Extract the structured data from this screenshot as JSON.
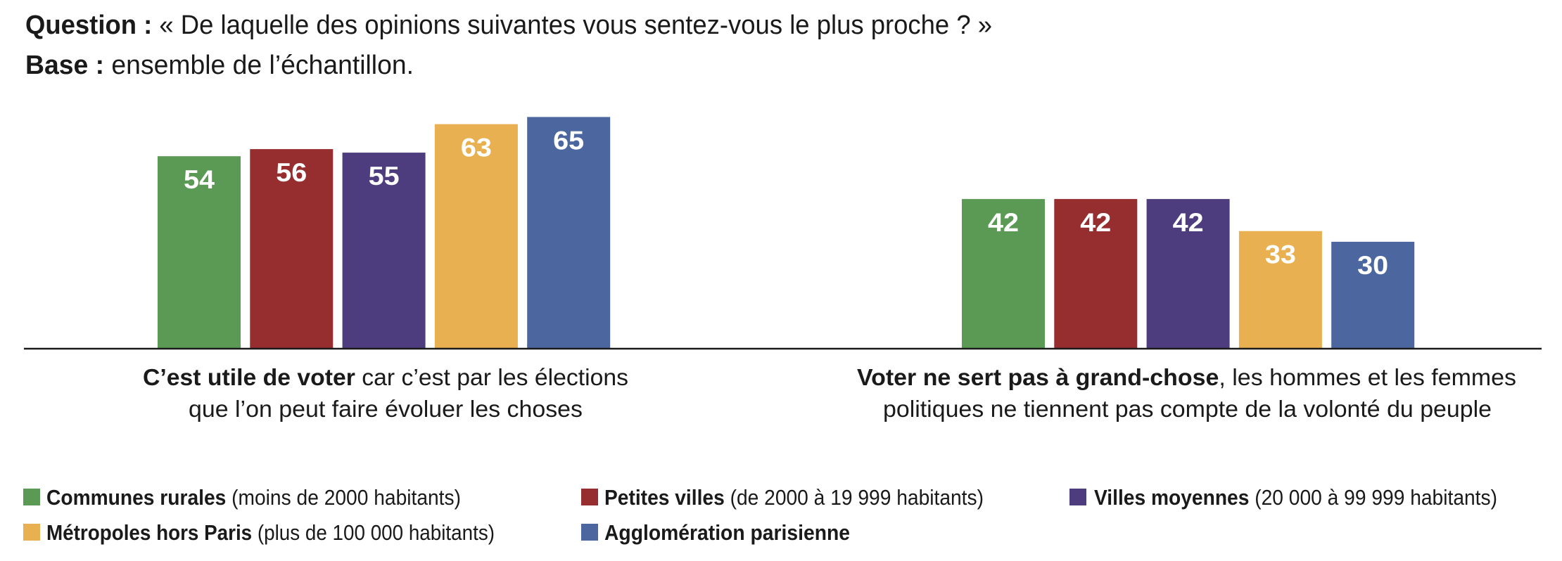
{
  "header": {
    "question_label": "Question :",
    "question_text": " « De laquelle des opinions suivantes vous sentez-vous le plus proche ? »",
    "base_label": "Base :",
    "base_text": " ensemble de l’échantillon."
  },
  "chart_data": {
    "type": "bar",
    "title": "Question : « De laquelle des opinions suivantes vous sentez-vous le plus proche ? »",
    "subtitle": "Base : ensemble de l’échantillon.",
    "xlabel": "",
    "ylabel": "",
    "ylim": [
      0,
      70
    ],
    "grid": false,
    "legend_position": "bottom",
    "categories": [
      {
        "bold": "C’est utile de voter",
        "line1_rest": " car c’est par les élections",
        "line2": "que l’on peut faire évoluer les choses"
      },
      {
        "bold": "Voter ne sert pas à grand-chose",
        "line1_rest": ", les hommes et les femmes",
        "line2": "politiques ne tiennent pas compte de la volonté du peuple"
      }
    ],
    "series": [
      {
        "name": "Communes rurales",
        "detail": " (moins de 2000 habitants)",
        "color": "#5B9A54",
        "values": [
          54,
          42
        ]
      },
      {
        "name": "Petites villes",
        "detail": " (de 2000 à 19 999 habitants)",
        "color": "#962E2F",
        "values": [
          56,
          42
        ]
      },
      {
        "name": "Villes moyennes",
        "detail": " (20 000 à 99 999 habitants)",
        "color": "#4E3D7E",
        "values": [
          55,
          42
        ]
      },
      {
        "name": "Métropoles hors Paris",
        "detail": " (plus de 100 000 habitants)",
        "color": "#E8B050",
        "values": [
          63,
          33
        ]
      },
      {
        "name": "Agglomération parisienne",
        "detail": "",
        "color": "#4C679F",
        "values": [
          65,
          30
        ]
      }
    ]
  }
}
